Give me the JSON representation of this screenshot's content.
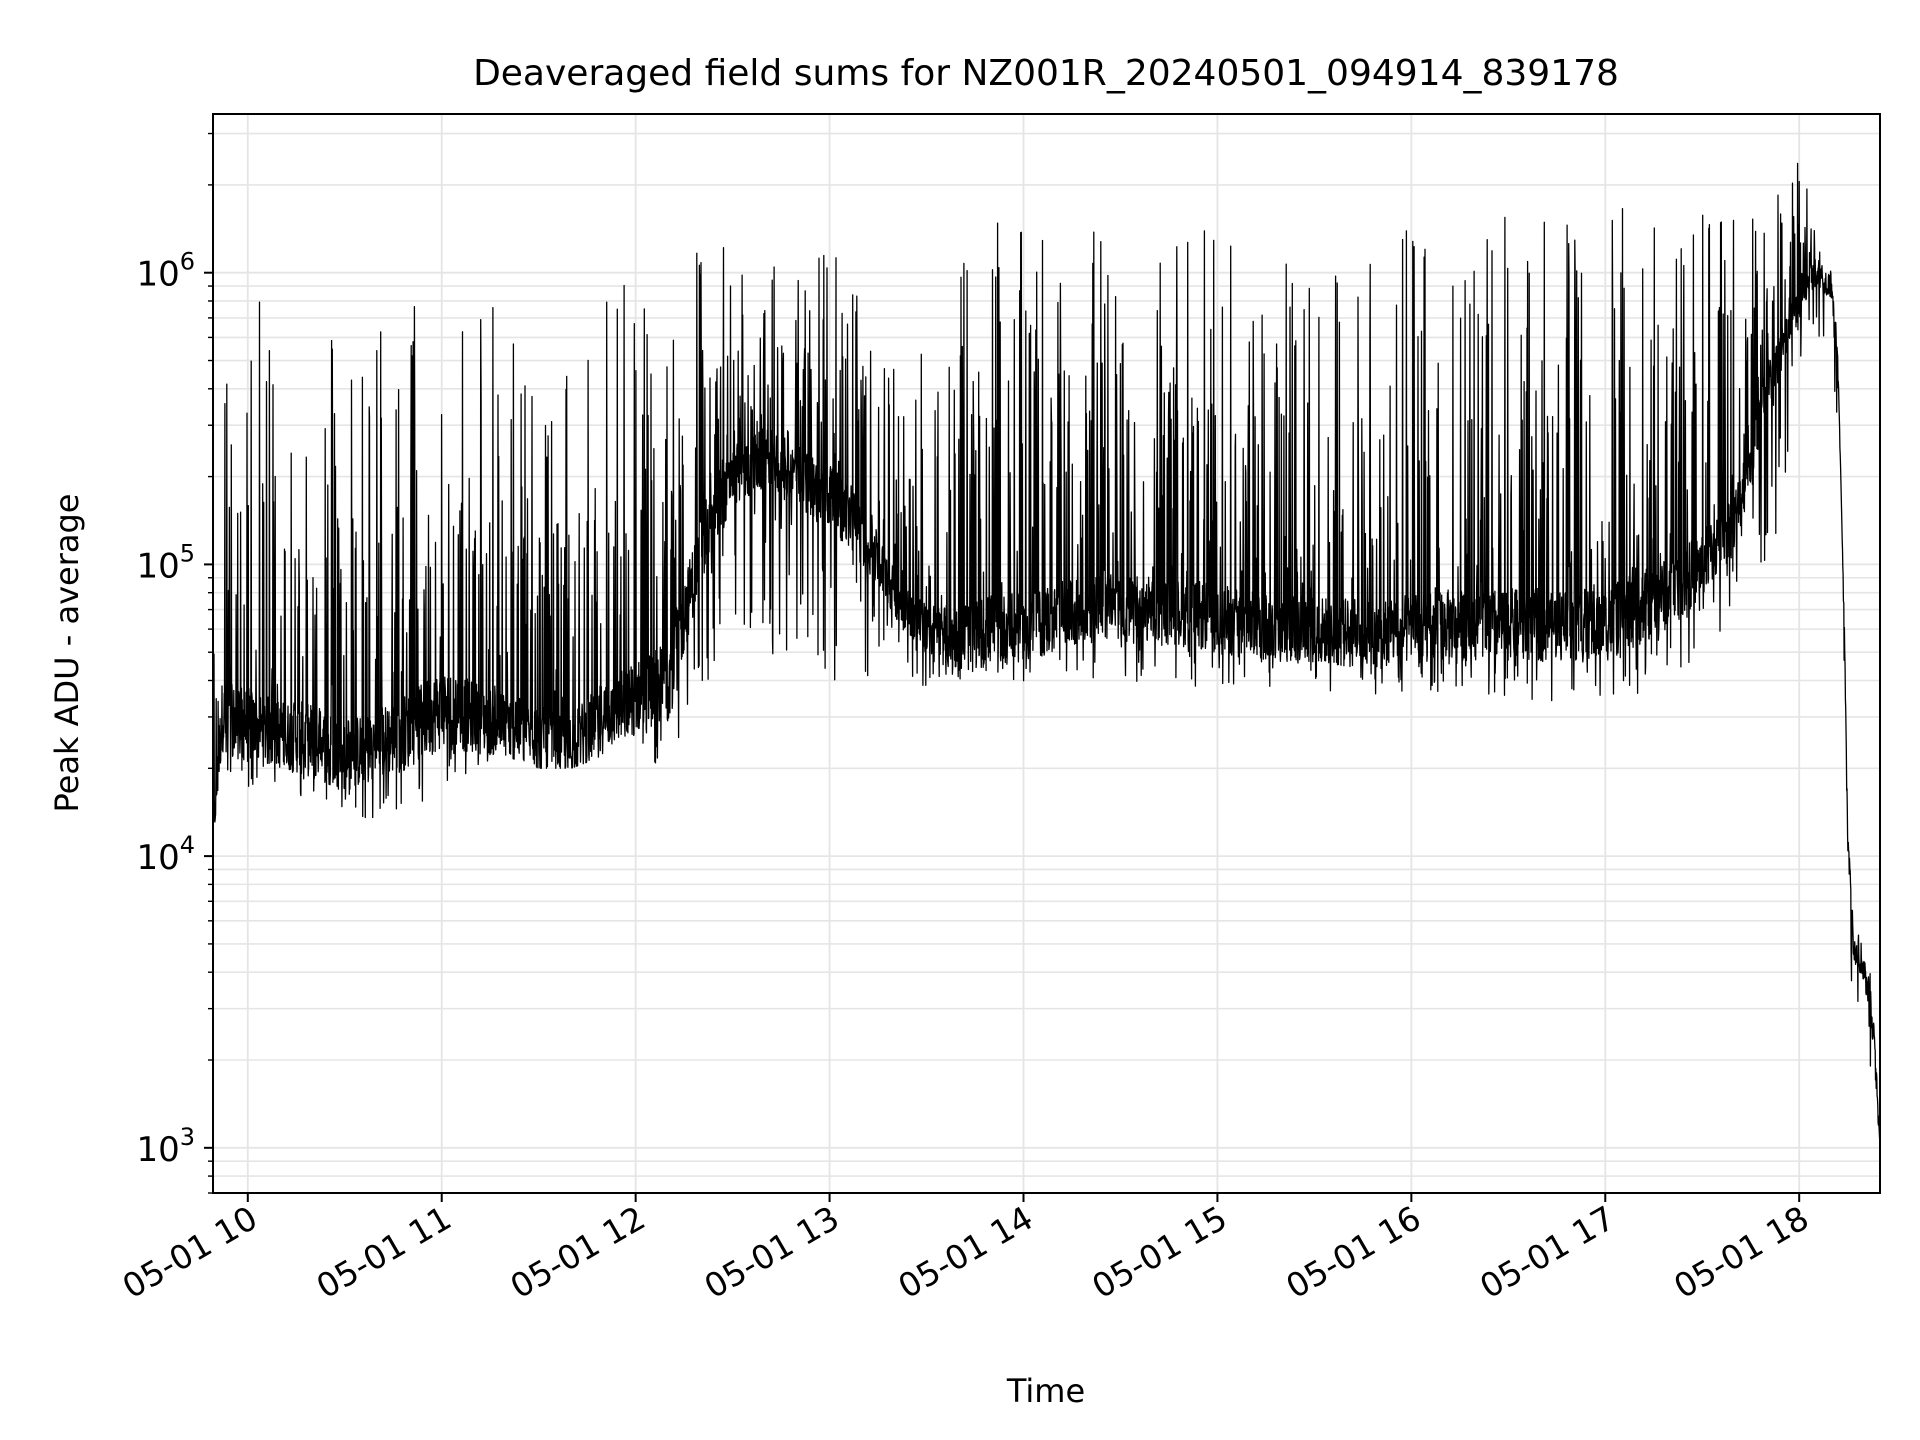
{
  "chart_data": {
    "type": "line",
    "title": "Deaveraged field sums for NZ001R_20240501_094914_839178",
    "xlabel": "Time",
    "ylabel": "Peak ADU - average",
    "yscale": "log",
    "xlim": [
      "2024-05-01T09:49:14",
      "2024-05-01T18:25:00"
    ],
    "ylim": [
      700,
      3500000
    ],
    "grid": true,
    "line_color": "#000000",
    "grid_color": "#e5e5e5",
    "x_ticks": [
      {
        "t": "2024-05-01T10:00:00",
        "label": "05-01 10"
      },
      {
        "t": "2024-05-01T11:00:00",
        "label": "05-01 11"
      },
      {
        "t": "2024-05-01T12:00:00",
        "label": "05-01 12"
      },
      {
        "t": "2024-05-01T13:00:00",
        "label": "05-01 13"
      },
      {
        "t": "2024-05-01T14:00:00",
        "label": "05-01 14"
      },
      {
        "t": "2024-05-01T15:00:00",
        "label": "05-01 15"
      },
      {
        "t": "2024-05-01T16:00:00",
        "label": "05-01 16"
      },
      {
        "t": "2024-05-01T17:00:00",
        "label": "05-01 17"
      },
      {
        "t": "2024-05-01T18:00:00",
        "label": "05-01 18"
      }
    ],
    "y_ticks": [
      {
        "value": 1000,
        "base": "10",
        "exp": "3"
      },
      {
        "value": 10000,
        "base": "10",
        "exp": "4"
      },
      {
        "value": 100000,
        "base": "10",
        "exp": "5"
      },
      {
        "value": 1000000,
        "base": "10",
        "exp": "6"
      }
    ],
    "series": [
      {
        "x": [
          "2024-05-01T09:49:14",
          "2024-05-01T09:52:00",
          "2024-05-01T10:00:00",
          "2024-05-01T10:10:00",
          "2024-05-01T10:20:00",
          "2024-05-01T10:30:00",
          "2024-05-01T10:40:00",
          "2024-05-01T10:50:00",
          "2024-05-01T11:00:00",
          "2024-05-01T11:10:00",
          "2024-05-01T11:20:00",
          "2024-05-01T11:30:00",
          "2024-05-01T11:40:00",
          "2024-05-01T11:50:00",
          "2024-05-01T12:00:00",
          "2024-05-01T12:10:00",
          "2024-05-01T12:20:00",
          "2024-05-01T12:30:00",
          "2024-05-01T12:40:00",
          "2024-05-01T12:50:00",
          "2024-05-01T13:00:00",
          "2024-05-01T13:10:00",
          "2024-05-01T13:20:00",
          "2024-05-01T13:30:00",
          "2024-05-01T13:40:00",
          "2024-05-01T13:50:00",
          "2024-05-01T14:00:00",
          "2024-05-01T14:10:00",
          "2024-05-01T14:20:00",
          "2024-05-01T14:30:00",
          "2024-05-01T14:40:00",
          "2024-05-01T14:50:00",
          "2024-05-01T15:00:00",
          "2024-05-01T15:10:00",
          "2024-05-01T15:20:00",
          "2024-05-01T15:30:00",
          "2024-05-01T15:40:00",
          "2024-05-01T15:50:00",
          "2024-05-01T16:00:00",
          "2024-05-01T16:10:00",
          "2024-05-01T16:20:00",
          "2024-05-01T16:30:00",
          "2024-05-01T16:40:00",
          "2024-05-01T16:50:00",
          "2024-05-01T17:00:00",
          "2024-05-01T17:10:00",
          "2024-05-01T17:20:00",
          "2024-05-01T17:30:00",
          "2024-05-01T17:40:00",
          "2024-05-01T17:50:00",
          "2024-05-01T18:00:00",
          "2024-05-01T18:05:00",
          "2024-05-01T18:10:00",
          "2024-05-01T18:12:00",
          "2024-05-01T18:14:00",
          "2024-05-01T18:15:00",
          "2024-05-01T18:17:00",
          "2024-05-01T18:20:00",
          "2024-05-01T18:23:00",
          "2024-05-01T18:25:00"
        ],
        "base": [
          12000,
          30000,
          28000,
          26000,
          25000,
          22000,
          24000,
          27000,
          32000,
          30000,
          28000,
          25000,
          24000,
          30000,
          35000,
          40000,
          110000,
          200000,
          230000,
          200000,
          170000,
          130000,
          80000,
          60000,
          55000,
          60000,
          60000,
          65000,
          70000,
          72000,
          70000,
          68000,
          65000,
          62000,
          60000,
          60000,
          58000,
          58000,
          60000,
          62000,
          62000,
          62000,
          62000,
          62000,
          62000,
          70000,
          80000,
          100000,
          140000,
          400000,
          800000,
          1000000,
          900000,
          500000,
          60000,
          12000,
          4500,
          4000,
          2500,
          1000
        ],
        "peak": [
          170000,
          700000,
          950000,
          600000,
          800000,
          600000,
          700000,
          800000,
          1100000,
          900000,
          700000,
          700000,
          600000,
          1000000,
          1100000,
          1300000,
          1300000,
          1300000,
          1400000,
          1300000,
          1300000,
          1200000,
          500000,
          600000,
          1300000,
          1500000,
          1400000,
          1400000,
          1400000,
          1300000,
          1200000,
          1400000,
          1500000,
          1400000,
          1200000,
          1200000,
          1400000,
          1300000,
          1500000,
          1500000,
          1500000,
          1600000,
          1600000,
          1500000,
          1700000,
          1700000,
          1700000,
          1600000,
          1700000,
          1800000,
          2500000,
          1700000,
          1200000,
          500000,
          60000,
          12000,
          6000,
          5000,
          3500,
          1000
        ],
        "trough": [
          12000,
          18000,
          17000,
          16000,
          15000,
          14000,
          13000,
          15000,
          16000,
          20000,
          22000,
          20000,
          20000,
          22000,
          25000,
          18000,
          35000,
          60000,
          50000,
          45000,
          40000,
          40000,
          40000,
          38000,
          37000,
          35000,
          35000,
          40000,
          40000,
          40000,
          38000,
          38000,
          38000,
          38000,
          38000,
          36000,
          36000,
          36000,
          36000,
          36000,
          36000,
          35000,
          34000,
          34000,
          33000,
          35000,
          40000,
          50000,
          60000,
          80000,
          400000,
          600000,
          500000,
          300000,
          40000,
          8000,
          2000,
          2000,
          1500,
          1000
        ]
      }
    ]
  }
}
